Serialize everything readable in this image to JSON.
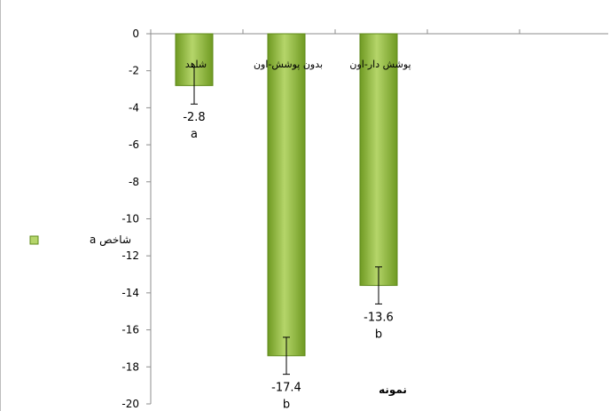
{
  "chart_data": {
    "type": "bar",
    "categories": [
      "شاهد",
      "بدون پوشش-اون",
      "پوشش دار-اون"
    ],
    "series": [
      {
        "name": "شاخص a",
        "values": [
          -2.8,
          -17.4,
          -13.6
        ],
        "errors": [
          1.0,
          1.0,
          1.0
        ],
        "value_labels": [
          "-2.8",
          "-17.4",
          "-13.6"
        ],
        "group_letters": [
          "a",
          "b",
          "b"
        ]
      }
    ],
    "y_ticks": [
      "0",
      "-2",
      "-4",
      "-6",
      "-8",
      "-10",
      "-12",
      "-14",
      "-16",
      "-18",
      "-20"
    ],
    "ylim": [
      -20,
      0
    ],
    "xlabel": "نمونه",
    "ylabel": "",
    "legend": {
      "position": "left",
      "label": "شاخص a"
    },
    "grid": false,
    "colors": {
      "bar_fill_light": "#b5d56a",
      "bar_fill_dark": "#6f9a22",
      "bar_stroke": "#5f8a1a",
      "axis": "#8c8c8c",
      "border": "#bdbdbd"
    }
  }
}
